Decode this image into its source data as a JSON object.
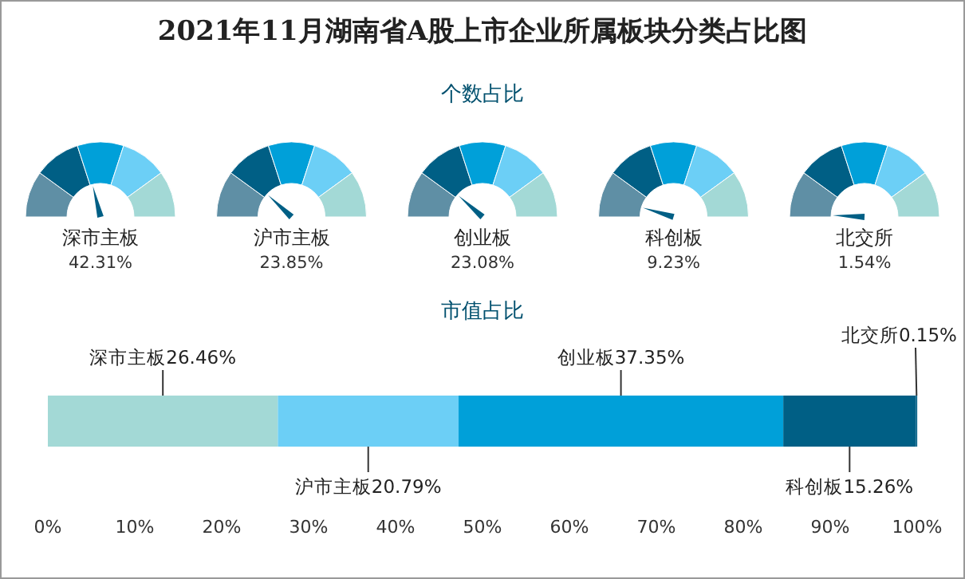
{
  "chart_data": [
    {
      "type": "other",
      "title": "2021年11月湖南省A股上市企业所属板块分类占比图",
      "subtitle": "个数占比",
      "categories": [
        "深市主板",
        "沪市主板",
        "创业板",
        "科创板",
        "北交所"
      ],
      "values": [
        42.31,
        23.85,
        23.08,
        9.23,
        1.54
      ],
      "value_labels": [
        "42.31%",
        "23.85%",
        "23.08%",
        "9.23%",
        "1.54%"
      ],
      "colors": [
        "#5f8fa5",
        "#005f85",
        "#00a0d9",
        "#6ccff6",
        "#a3d9d6"
      ]
    },
    {
      "type": "bar",
      "title": "市值占比",
      "orientation": "horizontal",
      "stacked": true,
      "categories": [
        null
      ],
      "xlim": [
        0,
        100
      ],
      "xticks": [
        {
          "value": 0,
          "label": "0%"
        },
        {
          "value": 10,
          "label": "10%"
        },
        {
          "value": 20,
          "label": "20%"
        },
        {
          "value": 30,
          "label": "30%"
        },
        {
          "value": 40,
          "label": "40%"
        },
        {
          "value": 50,
          "label": "50%"
        },
        {
          "value": 60,
          "label": "60%"
        },
        {
          "value": 70,
          "label": "70%"
        },
        {
          "value": 80,
          "label": "80%"
        },
        {
          "value": 90,
          "label": "90%"
        },
        {
          "value": 100,
          "label": "100%"
        }
      ],
      "tick_labels": "x",
      "series": [
        {
          "name": "深市主板",
          "color": "#a3d9d6",
          "values": [
            26.46
          ],
          "value_labels": [
            "26.46%"
          ]
        },
        {
          "name": "沪市主板",
          "color": "#6ccff6",
          "values": [
            20.79
          ],
          "value_labels": [
            "20.79%"
          ]
        },
        {
          "name": "创业板",
          "color": "#00a0d9",
          "values": [
            37.35
          ],
          "value_labels": [
            "37.35%"
          ]
        },
        {
          "name": "科创板",
          "color": "#005f85",
          "values": [
            15.26
          ],
          "value_labels": [
            "15.26%"
          ]
        },
        {
          "name": "北交所",
          "color": "#005f85",
          "values": [
            0.15
          ],
          "value_labels": [
            "0.15%"
          ]
        }
      ]
    }
  ]
}
